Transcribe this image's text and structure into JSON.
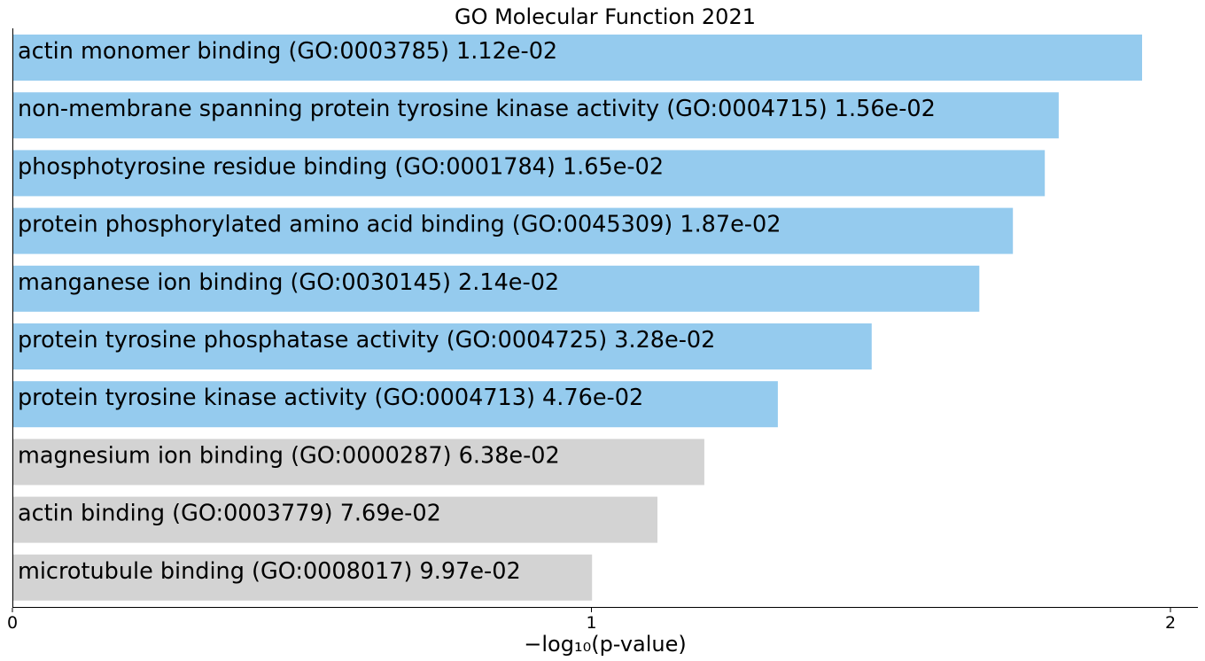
{
  "chart_data": {
    "type": "bar",
    "orientation": "horizontal",
    "title": "GO Molecular Function 2021",
    "xlabel": "−log₁₀(p-value)",
    "ylabel": "",
    "xlim": [
      0,
      2.05
    ],
    "xticks": [
      0,
      1,
      2
    ],
    "grid": false,
    "colors": {
      "significant": "#95cbee",
      "not_significant": "#d3d3d3"
    },
    "bars": [
      {
        "label": "actin monomer binding (GO:0003785)  1.12e-02",
        "value": 1.951,
        "significant": true
      },
      {
        "label": "non-membrane spanning protein tyrosine kinase activity (GO:0004715)  1.56e-02",
        "value": 1.807,
        "significant": true
      },
      {
        "label": "phosphotyrosine residue binding (GO:0001784)  1.65e-02",
        "value": 1.783,
        "significant": true
      },
      {
        "label": "protein phosphorylated amino acid binding (GO:0045309)  1.87e-02",
        "value": 1.728,
        "significant": true
      },
      {
        "label": "manganese ion binding (GO:0030145)  2.14e-02",
        "value": 1.67,
        "significant": true
      },
      {
        "label": "protein tyrosine phosphatase activity (GO:0004725)  3.28e-02",
        "value": 1.484,
        "significant": true
      },
      {
        "label": "protein tyrosine kinase activity (GO:0004713)  4.76e-02",
        "value": 1.322,
        "significant": true
      },
      {
        "label": "magnesium ion binding (GO:0000287)  6.38e-02",
        "value": 1.195,
        "significant": false
      },
      {
        "label": "actin binding (GO:0003779)  7.69e-02",
        "value": 1.114,
        "significant": false
      },
      {
        "label": "microtubule binding (GO:0008017)  9.97e-02",
        "value": 1.001,
        "significant": false
      }
    ]
  }
}
